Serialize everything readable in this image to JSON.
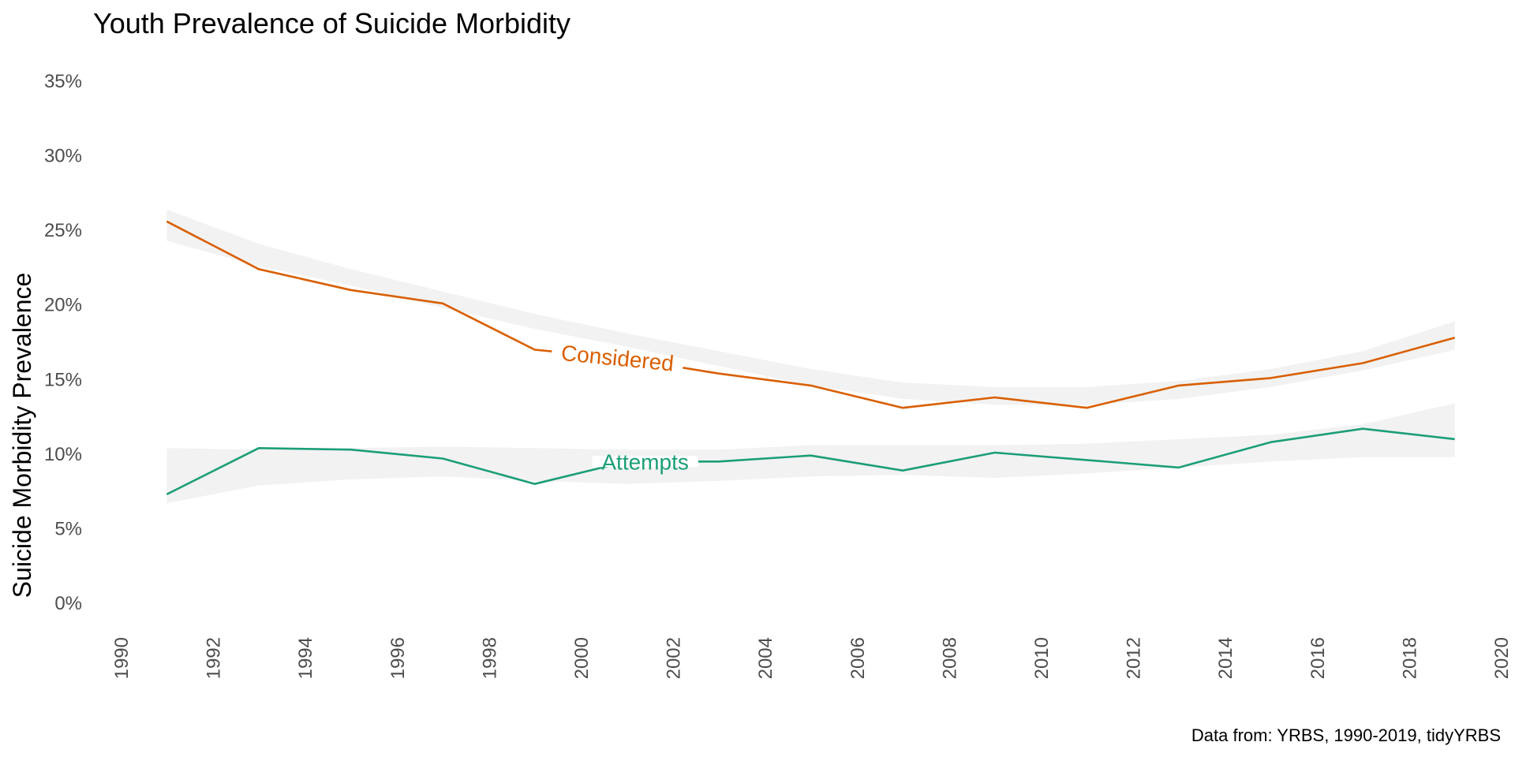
{
  "chart_data": {
    "type": "line",
    "title": "Youth Prevalence of Suicide Morbidity",
    "xlabel": "",
    "ylabel": "Suicide Morbidity Prevalence",
    "caption": "Data from: YRBS, 1990-2019, tidyYRBS",
    "xlim": [
      1990,
      2020
    ],
    "ylim": [
      0,
      0.35
    ],
    "x_ticks": [
      1990,
      1992,
      1994,
      1996,
      1998,
      2000,
      2002,
      2004,
      2006,
      2008,
      2010,
      2012,
      2014,
      2016,
      2018,
      2020
    ],
    "y_ticks": [
      {
        "value": 0,
        "label": "0%"
      },
      {
        "value": 0.05,
        "label": "5%"
      },
      {
        "value": 0.1,
        "label": "10%"
      },
      {
        "value": 0.15,
        "label": "15%"
      },
      {
        "value": 0.2,
        "label": "20%"
      },
      {
        "value": 0.25,
        "label": "25%"
      },
      {
        "value": 0.3,
        "label": "30%"
      },
      {
        "value": 0.35,
        "label": "35%"
      }
    ],
    "grid": false,
    "legend": "none",
    "x": [
      1991,
      1993,
      1995,
      1997,
      1999,
      2001,
      2003,
      2005,
      2007,
      2009,
      2011,
      2013,
      2015,
      2017,
      2019
    ],
    "series": [
      {
        "name": "Considered",
        "color": "#D95F02",
        "values": [
          0.256,
          0.224,
          0.21,
          0.201,
          0.17,
          0.164,
          0.154,
          0.146,
          0.131,
          0.138,
          0.131,
          0.146,
          0.151,
          0.161,
          0.178
        ],
        "band_lower": [
          0.243,
          0.226,
          0.213,
          0.198,
          0.184,
          0.172,
          0.159,
          0.146,
          0.137,
          0.133,
          0.133,
          0.137,
          0.145,
          0.156,
          0.17
        ],
        "band_upper": [
          0.264,
          0.241,
          0.224,
          0.209,
          0.194,
          0.181,
          0.169,
          0.157,
          0.148,
          0.145,
          0.145,
          0.149,
          0.157,
          0.169,
          0.189
        ],
        "label_at": 2000.8
      },
      {
        "name": "Attempts",
        "color": "#1B9E77",
        "values": [
          0.073,
          0.104,
          0.103,
          0.097,
          0.08,
          0.095,
          0.095,
          0.099,
          0.089,
          0.101,
          0.096,
          0.091,
          0.108,
          0.117,
          0.11
        ],
        "band_lower": [
          0.067,
          0.079,
          0.083,
          0.085,
          0.082,
          0.08,
          0.082,
          0.085,
          0.086,
          0.084,
          0.087,
          0.091,
          0.095,
          0.098,
          0.098
        ],
        "band_upper": [
          0.104,
          0.103,
          0.104,
          0.105,
          0.104,
          0.103,
          0.103,
          0.106,
          0.106,
          0.106,
          0.107,
          0.11,
          0.113,
          0.12,
          0.134
        ],
        "label_at": 2001.4
      }
    ]
  }
}
